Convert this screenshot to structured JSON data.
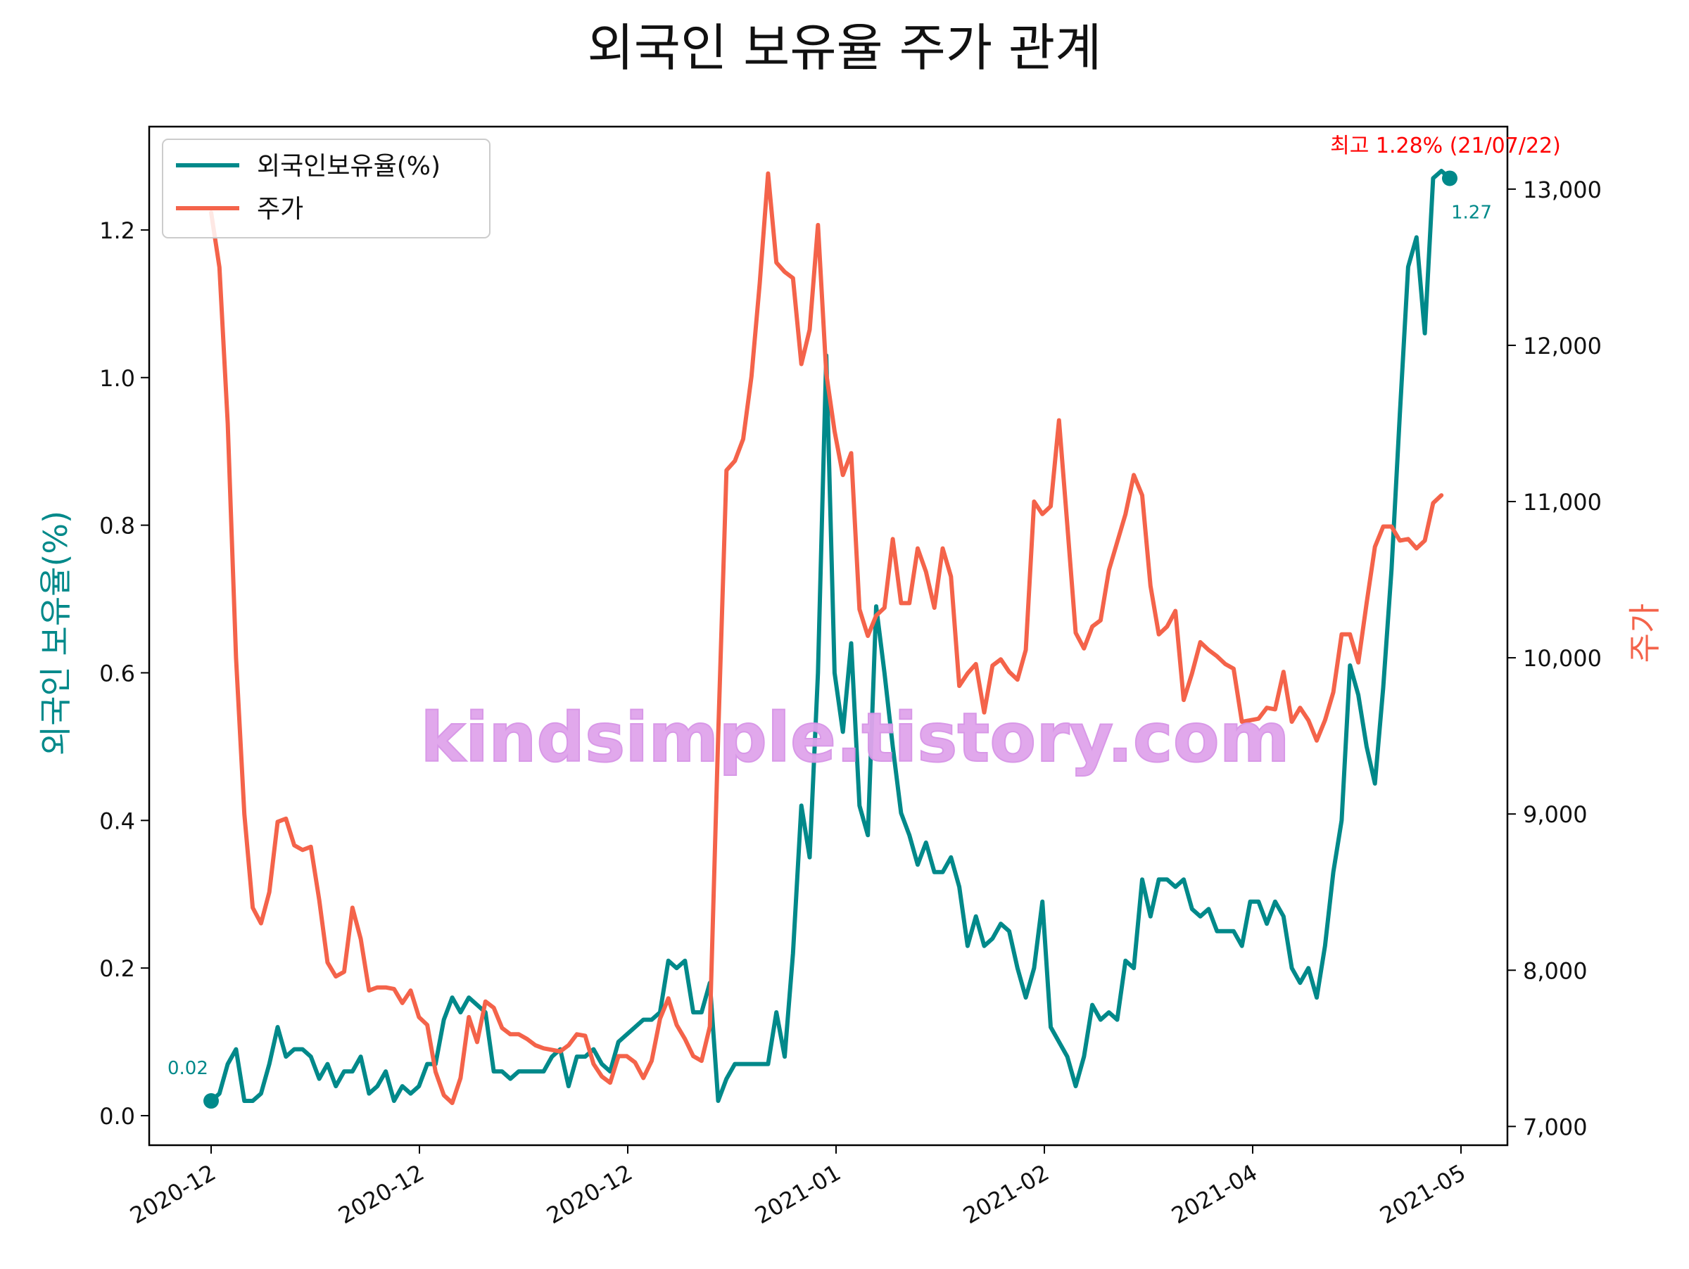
{
  "chart_data": {
    "type": "line",
    "title": "외국인 보유율 주가 관계",
    "ylabel_left": "외국인 보유율(%)",
    "ylabel_right": "주가",
    "xtick_labels": [
      "2020-12",
      "2020-12",
      "2020-12",
      "2021-01",
      "2021-02",
      "2021-04",
      "2021-05"
    ],
    "y_left_ticks": [
      "0.0",
      "0.2",
      "0.4",
      "0.6",
      "0.8",
      "1.0",
      "1.2"
    ],
    "y_left_range": [
      -0.04,
      1.34
    ],
    "y_right_ticks": [
      "7,000",
      "8,000",
      "9,000",
      "10,000",
      "11,000",
      "12,000",
      "13,000"
    ],
    "y_right_range": [
      6880,
      13400
    ],
    "legend_position": "upper left",
    "legend": [
      "외국인보유율(%)",
      "주가"
    ],
    "series": [
      {
        "name": "외국인보유율(%)",
        "axis": "left",
        "color": "#00898a",
        "values": [
          0.02,
          0.03,
          0.07,
          0.09,
          0.02,
          0.02,
          0.03,
          0.07,
          0.12,
          0.08,
          0.09,
          0.09,
          0.08,
          0.05,
          0.07,
          0.04,
          0.06,
          0.06,
          0.08,
          0.03,
          0.04,
          0.06,
          0.02,
          0.04,
          0.03,
          0.04,
          0.07,
          0.07,
          0.13,
          0.16,
          0.14,
          0.16,
          0.15,
          0.14,
          0.06,
          0.06,
          0.05,
          0.06,
          0.06,
          0.06,
          0.06,
          0.08,
          0.09,
          0.04,
          0.08,
          0.08,
          0.09,
          0.07,
          0.06,
          0.1,
          0.11,
          0.12,
          0.13,
          0.13,
          0.14,
          0.21,
          0.2,
          0.21,
          0.14,
          0.14,
          0.18,
          0.02,
          0.05,
          0.07,
          0.07,
          0.07,
          0.07,
          0.07,
          0.14,
          0.08,
          0.22,
          0.42,
          0.35,
          0.6,
          1.03,
          0.6,
          0.52,
          0.64,
          0.42,
          0.38,
          0.69,
          0.6,
          0.5,
          0.41,
          0.38,
          0.34,
          0.37,
          0.33,
          0.33,
          0.35,
          0.31,
          0.23,
          0.27,
          0.23,
          0.24,
          0.26,
          0.25,
          0.2,
          0.16,
          0.2,
          0.29,
          0.12,
          0.1,
          0.08,
          0.04,
          0.08,
          0.15,
          0.13,
          0.14,
          0.13,
          0.21,
          0.2,
          0.32,
          0.27,
          0.32,
          0.32,
          0.31,
          0.32,
          0.28,
          0.27,
          0.28,
          0.25,
          0.25,
          0.25,
          0.23,
          0.29,
          0.29,
          0.26,
          0.29,
          0.27,
          0.2,
          0.18,
          0.2,
          0.16,
          0.23,
          0.33,
          0.4,
          0.61,
          0.57,
          0.5,
          0.45,
          0.58,
          0.74,
          0.95,
          1.15,
          1.19,
          1.06,
          1.27,
          1.28,
          1.27
        ]
      },
      {
        "name": "주가",
        "axis": "right",
        "color": "#f4634a",
        "values": [
          12850,
          12500,
          11500,
          10000,
          9000,
          8400,
          8300,
          8500,
          8950,
          8970,
          8800,
          8770,
          8790,
          8450,
          8050,
          7960,
          7990,
          8400,
          8200,
          7870,
          7890,
          7890,
          7880,
          7790,
          7870,
          7700,
          7650,
          7350,
          7200,
          7150,
          7310,
          7700,
          7540,
          7800,
          7760,
          7630,
          7590,
          7590,
          7560,
          7520,
          7500,
          7490,
          7480,
          7520,
          7590,
          7580,
          7400,
          7320,
          7280,
          7450,
          7450,
          7410,
          7310,
          7420,
          7690,
          7820,
          7650,
          7560,
          7450,
          7420,
          7640,
          9500,
          11200,
          11260,
          11400,
          11800,
          12400,
          13100,
          12530,
          12470,
          12430,
          11880,
          12100,
          12770,
          11820,
          11450,
          11170,
          11310,
          10310,
          10140,
          10270,
          10320,
          10760,
          10350,
          10350,
          10700,
          10550,
          10320,
          10700,
          10520,
          9820,
          9900,
          9960,
          9650,
          9950,
          9990,
          9910,
          9860,
          10050,
          11000,
          10920,
          10970,
          11520,
          10850,
          10160,
          10060,
          10200,
          10240,
          10560,
          10740,
          10920,
          11170,
          11040,
          10460,
          10150,
          10200,
          10300,
          9730,
          9900,
          10100,
          10050,
          10010,
          9960,
          9930,
          9590,
          9600,
          9610,
          9680,
          9670,
          9910,
          9590,
          9680,
          9600,
          9470,
          9600,
          9780,
          10150,
          10150,
          9970,
          10350,
          10710,
          10840,
          10840,
          10750,
          10760,
          10700,
          10750,
          10990,
          11040
        ]
      }
    ],
    "annotations": {
      "start_label": "0.02",
      "end_label": "1.27",
      "max_label": "최고 1.28% (21/07/22)"
    }
  },
  "watermark": "kindsimple.tistory.com"
}
